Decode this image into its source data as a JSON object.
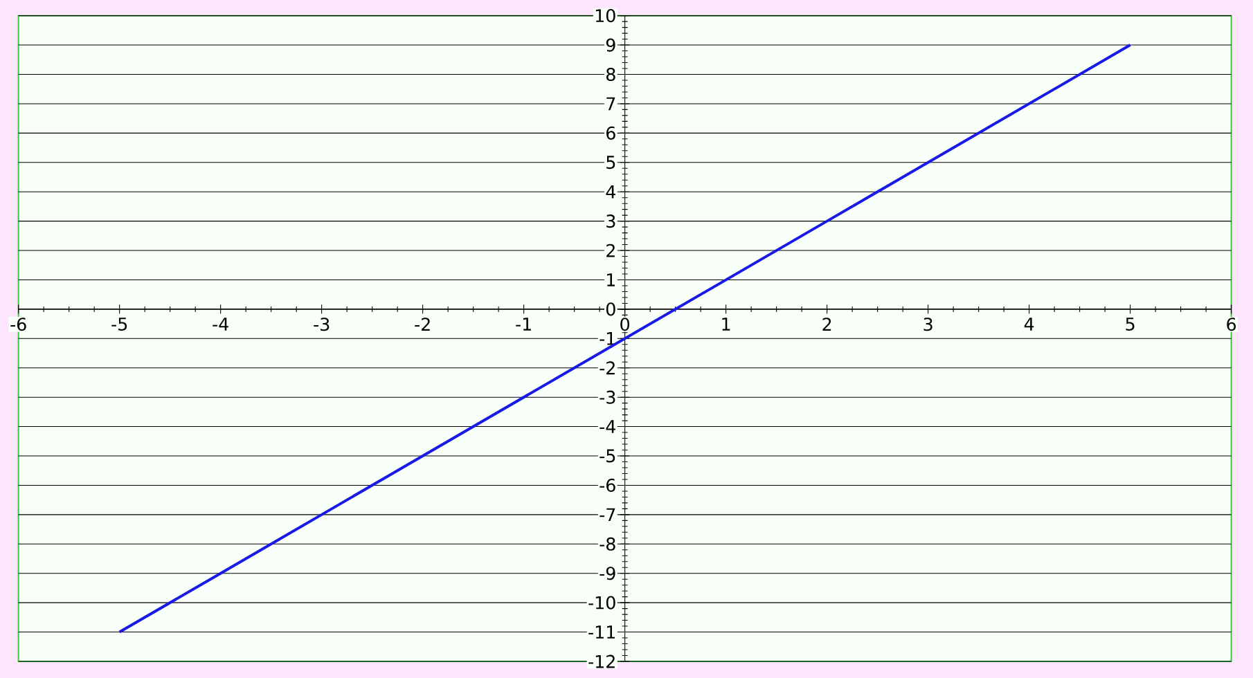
{
  "chart_data": {
    "type": "line",
    "x": [
      -5,
      -4,
      -3,
      -2,
      -1,
      0,
      1,
      2,
      3,
      4,
      5
    ],
    "series": [
      {
        "color": "#1a1ae6",
        "values": [
          -11,
          -9,
          -7,
          -5,
          -3,
          -1,
          1,
          3,
          5,
          7,
          9
        ]
      }
    ],
    "xlim": [
      -6,
      6
    ],
    "ylim": [
      -12,
      10
    ],
    "xticks": [
      -6,
      -5,
      -4,
      -3,
      -2,
      -1,
      0,
      1,
      2,
      3,
      4,
      5,
      6
    ],
    "yticks": [
      -12,
      -11,
      -10,
      -9,
      -8,
      -7,
      -6,
      -5,
      -4,
      -3,
      -2,
      -1,
      0,
      1,
      2,
      3,
      4,
      5,
      6,
      7,
      8,
      9,
      10
    ],
    "grid": "y",
    "line_style": "solid"
  }
}
